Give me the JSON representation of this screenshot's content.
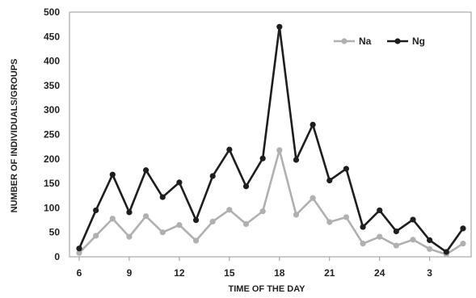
{
  "chart_data": {
    "type": "line",
    "xlabel": "TIME OF THE DAY",
    "ylabel": "NUMBER OF INDIVIDUALS/GROUPS",
    "ylim": [
      0,
      500
    ],
    "yticks": [
      "0",
      "50",
      "100",
      "150",
      "200",
      "250",
      "300",
      "350",
      "400",
      "450",
      "500"
    ],
    "x_tick_labels": [
      "6",
      "9",
      "12",
      "15",
      "18",
      "21",
      "24",
      "3"
    ],
    "x_tick_index": [
      0,
      3,
      6,
      9,
      12,
      15,
      18,
      21
    ],
    "grid": false,
    "legend": "top-right",
    "series": [
      {
        "name": "Na",
        "color": "#b0b0b0",
        "values": [
          8,
          43,
          78,
          41,
          83,
          50,
          65,
          33,
          72,
          96,
          67,
          93,
          218,
          86,
          120,
          71,
          81,
          27,
          41,
          23,
          35,
          16,
          5,
          27
        ]
      },
      {
        "name": "Ng",
        "color": "#1e1e1e",
        "values": [
          17,
          95,
          168,
          91,
          177,
          122,
          152,
          75,
          165,
          219,
          144,
          201,
          470,
          198,
          270,
          156,
          180,
          61,
          95,
          52,
          76,
          34,
          10,
          58
        ]
      }
    ]
  }
}
